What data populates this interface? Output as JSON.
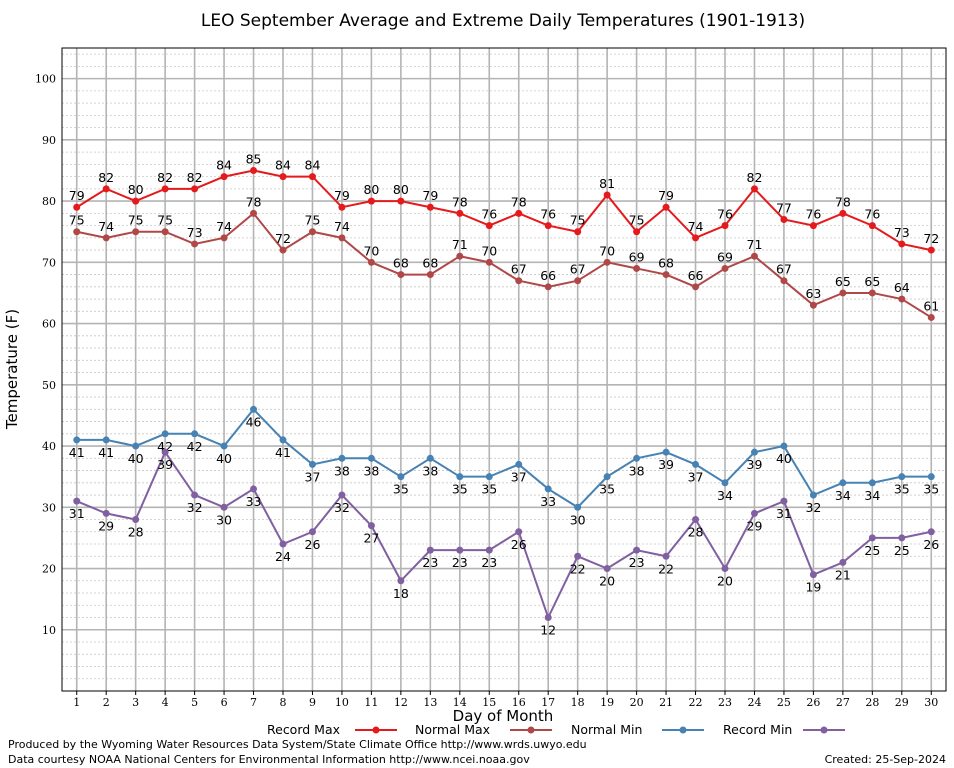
{
  "chart_data": {
    "type": "line",
    "title": "LEO September Average and Extreme Daily Temperatures (1901-1913)",
    "xlabel": "Day of Month",
    "ylabel": "Temperature (F)",
    "x": [
      1,
      2,
      3,
      4,
      5,
      6,
      7,
      8,
      9,
      10,
      11,
      12,
      13,
      14,
      15,
      16,
      17,
      18,
      19,
      20,
      21,
      22,
      23,
      24,
      25,
      26,
      27,
      28,
      29,
      30
    ],
    "xlim": [
      0.5,
      30.5
    ],
    "ylim": [
      0,
      105
    ],
    "yticks": [
      10,
      20,
      30,
      40,
      50,
      60,
      70,
      80,
      90,
      100
    ],
    "grid": true,
    "legend_position": "bottom",
    "series": [
      {
        "name": "Record Max",
        "color": "#e41a1c",
        "label_pos": "above",
        "values": [
          79,
          82,
          80,
          82,
          82,
          84,
          85,
          84,
          84,
          79,
          80,
          80,
          79,
          78,
          76,
          78,
          76,
          75,
          81,
          75,
          79,
          74,
          76,
          82,
          77,
          76,
          78,
          76,
          73,
          72
        ]
      },
      {
        "name": "Normal Max",
        "color": "#b04848",
        "label_pos": "above",
        "values": [
          75,
          74,
          75,
          75,
          73,
          74,
          78,
          72,
          75,
          74,
          70,
          68,
          68,
          71,
          70,
          67,
          66,
          67,
          70,
          69,
          68,
          66,
          69,
          71,
          67,
          63,
          65,
          65,
          64,
          61
        ]
      },
      {
        "name": "Normal Min",
        "color": "#4682b4",
        "label_pos": "below",
        "values": [
          41,
          41,
          40,
          42,
          42,
          40,
          46,
          41,
          37,
          38,
          38,
          35,
          38,
          35,
          35,
          37,
          33,
          30,
          35,
          38,
          39,
          37,
          34,
          39,
          40,
          32,
          34,
          34,
          35,
          35
        ]
      },
      {
        "name": "Record Min",
        "color": "#8060a0",
        "label_pos": "below",
        "values": [
          31,
          29,
          28,
          39,
          32,
          30,
          33,
          24,
          26,
          32,
          27,
          18,
          23,
          23,
          23,
          26,
          12,
          22,
          20,
          23,
          22,
          28,
          20,
          29,
          31,
          19,
          21,
          25,
          25,
          26
        ]
      }
    ]
  },
  "footer": {
    "line1": "Produced by the Wyoming Water Resources Data System/State Climate Office http://www.wrds.uwyo.edu",
    "line2": "Data courtesy NOAA National Centers for Environmental Information http://www.ncei.noaa.gov",
    "created": "Created:  25-Sep-2024"
  }
}
